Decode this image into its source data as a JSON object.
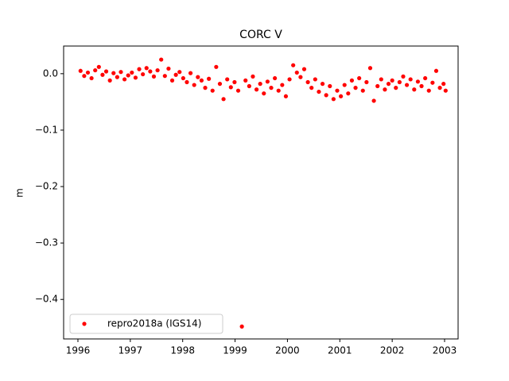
{
  "chart_data": {
    "type": "scatter",
    "title": "CORC V",
    "ylabel": "m",
    "x": [
      1996.05,
      1996.12,
      1996.19,
      1996.26,
      1996.33,
      1996.4,
      1996.47,
      1996.54,
      1996.61,
      1996.68,
      1996.75,
      1996.82,
      1996.89,
      1996.96,
      1997.03,
      1997.1,
      1997.17,
      1997.24,
      1997.31,
      1997.38,
      1997.45,
      1997.52,
      1997.59,
      1997.66,
      1997.73,
      1997.8,
      1997.87,
      1997.94,
      1998.01,
      1998.08,
      1998.15,
      1998.22,
      1998.29,
      1998.36,
      1998.43,
      1998.5,
      1998.57,
      1998.64,
      1998.71,
      1998.78,
      1998.85,
      1998.92,
      1998.99,
      1999.06,
      1999.13,
      1999.2,
      1999.27,
      1999.34,
      1999.41,
      1999.48,
      1999.55,
      1999.62,
      1999.69,
      1999.76,
      1999.83,
      1999.9,
      1999.97,
      2000.04,
      2000.11,
      2000.18,
      2000.25,
      2000.32,
      2000.39,
      2000.46,
      2000.53,
      2000.6,
      2000.67,
      2000.74,
      2000.81,
      2000.88,
      2000.95,
      2001.02,
      2001.09,
      2001.16,
      2001.23,
      2001.3,
      2001.37,
      2001.44,
      2001.51,
      2001.58,
      2001.65,
      2001.72,
      2001.79,
      2001.86,
      2001.93,
      2002.0,
      2002.07,
      2002.14,
      2002.21,
      2002.28,
      2002.35,
      2002.42,
      2002.49,
      2002.56,
      2002.63,
      2002.7,
      2002.77,
      2002.84,
      2002.91,
      2002.98,
      2003.02
    ],
    "series": [
      {
        "name": "repro2018a (IGS14)",
        "color": "#ff0000",
        "values": [
          0.005,
          -0.004,
          0.002,
          -0.008,
          0.006,
          0.012,
          -0.002,
          0.004,
          -0.012,
          0.001,
          -0.006,
          0.003,
          -0.01,
          -0.003,
          0.002,
          -0.007,
          0.008,
          -0.001,
          0.01,
          0.004,
          -0.005,
          0.006,
          0.025,
          -0.004,
          0.009,
          -0.012,
          -0.002,
          0.003,
          -0.008,
          -0.015,
          0.001,
          -0.02,
          -0.006,
          -0.012,
          -0.025,
          -0.009,
          -0.03,
          0.012,
          -0.018,
          -0.045,
          -0.01,
          -0.024,
          -0.015,
          -0.03,
          -0.448,
          -0.012,
          -0.022,
          -0.005,
          -0.028,
          -0.018,
          -0.035,
          -0.014,
          -0.025,
          -0.008,
          -0.03,
          -0.02,
          -0.04,
          -0.01,
          0.015,
          0.002,
          -0.006,
          0.008,
          -0.015,
          -0.025,
          -0.01,
          -0.032,
          -0.018,
          -0.038,
          -0.022,
          -0.045,
          -0.03,
          -0.04,
          -0.02,
          -0.035,
          -0.012,
          -0.025,
          -0.008,
          -0.03,
          -0.015,
          0.01,
          -0.048,
          -0.022,
          -0.01,
          -0.028,
          -0.018,
          -0.012,
          -0.025,
          -0.015,
          -0.005,
          -0.02,
          -0.01,
          -0.028,
          -0.014,
          -0.022,
          -0.008,
          -0.03,
          -0.016,
          0.005,
          -0.025,
          -0.018,
          -0.03
        ]
      }
    ],
    "xlim": [
      1995.727,
      2003.258
    ],
    "xticks": [
      1996,
      1997,
      1998,
      1999,
      2000,
      2001,
      2002,
      2003
    ],
    "ylim": [
      -0.47,
      0.049
    ],
    "yticks": [
      {
        "value": -0.4,
        "label": "−0.4"
      },
      {
        "value": -0.3,
        "label": "−0.3"
      },
      {
        "value": -0.2,
        "label": "−0.2"
      },
      {
        "value": -0.1,
        "label": "−0.1"
      },
      {
        "value": 0,
        "label": "0.0"
      }
    ],
    "legend": "lower left"
  }
}
